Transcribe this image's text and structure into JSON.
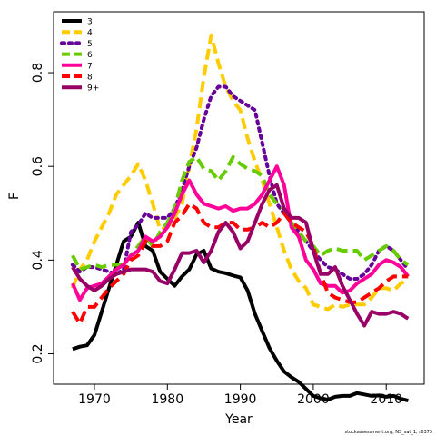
{
  "chart_data": {
    "type": "line",
    "title": "",
    "xlabel": "Year",
    "ylabel": "F",
    "xlim": [
      1964.4,
      2015.2
    ],
    "ylim": [
      0.135,
      0.93
    ],
    "xticks": [
      1970,
      1980,
      1990,
      2000,
      2010
    ],
    "yticks": [
      0.2,
      0.4,
      0.6,
      0.8
    ],
    "grid": false,
    "legend_position": "top-left",
    "credit": "stockassessment.org, NS_sat_1, r6373",
    "x": [
      1967,
      1968,
      1969,
      1970,
      1971,
      1972,
      1973,
      1974,
      1975,
      1976,
      1977,
      1978,
      1979,
      1980,
      1981,
      1982,
      1983,
      1984,
      1985,
      1986,
      1987,
      1988,
      1989,
      1990,
      1991,
      1992,
      1993,
      1994,
      1995,
      1996,
      1997,
      1998,
      1999,
      2000,
      2001,
      2002,
      2003,
      2004,
      2005,
      2006,
      2007,
      2008,
      2009,
      2010,
      2011,
      2012,
      2013
    ],
    "series": [
      {
        "name": "3",
        "color": "#000000",
        "dash": "solid",
        "values": [
          0.21,
          0.215,
          0.218,
          0.24,
          0.29,
          0.34,
          0.39,
          0.44,
          0.45,
          0.48,
          0.43,
          0.42,
          0.375,
          0.36,
          0.345,
          0.365,
          0.38,
          0.412,
          0.42,
          0.382,
          0.375,
          0.372,
          0.367,
          0.363,
          0.335,
          0.285,
          0.248,
          0.212,
          0.185,
          0.162,
          0.15,
          0.14,
          0.125,
          0.11,
          0.105,
          0.102,
          0.108,
          0.11,
          0.11,
          0.116,
          0.113,
          0.11,
          0.111,
          0.108,
          0.11,
          0.104,
          0.1
        ]
      },
      {
        "name": "4",
        "color": "#FFCC00",
        "dash": "dashed",
        "values": [
          0.34,
          0.38,
          0.4,
          0.44,
          0.47,
          0.5,
          0.54,
          0.56,
          0.58,
          0.605,
          0.57,
          0.52,
          0.465,
          0.47,
          0.49,
          0.52,
          0.6,
          0.68,
          0.79,
          0.88,
          0.82,
          0.77,
          0.74,
          0.72,
          0.66,
          0.61,
          0.57,
          0.52,
          0.47,
          0.42,
          0.38,
          0.355,
          0.34,
          0.305,
          0.3,
          0.295,
          0.305,
          0.3,
          0.305,
          0.305,
          0.305,
          0.32,
          0.34,
          0.34,
          0.335,
          0.35,
          0.36
        ]
      },
      {
        "name": "5",
        "color": "#660099",
        "dash": "dotted",
        "values": [
          0.39,
          0.375,
          0.385,
          0.385,
          0.38,
          0.375,
          0.37,
          0.38,
          0.46,
          0.475,
          0.5,
          0.49,
          0.49,
          0.49,
          0.51,
          0.55,
          0.6,
          0.64,
          0.7,
          0.75,
          0.77,
          0.77,
          0.75,
          0.74,
          0.73,
          0.72,
          0.65,
          0.58,
          0.52,
          0.5,
          0.48,
          0.46,
          0.44,
          0.42,
          0.4,
          0.385,
          0.38,
          0.37,
          0.36,
          0.36,
          0.37,
          0.39,
          0.42,
          0.43,
          0.42,
          0.4,
          0.38
        ]
      },
      {
        "name": "6",
        "color": "#66CC00",
        "dash": "dashed",
        "values": [
          0.41,
          0.38,
          0.385,
          0.39,
          0.385,
          0.39,
          0.39,
          0.39,
          0.41,
          0.43,
          0.45,
          0.43,
          0.46,
          0.48,
          0.51,
          0.57,
          0.61,
          0.62,
          0.595,
          0.59,
          0.57,
          0.59,
          0.62,
          0.605,
          0.595,
          0.59,
          0.58,
          0.54,
          0.52,
          0.51,
          0.48,
          0.46,
          0.44,
          0.43,
          0.41,
          0.42,
          0.425,
          0.42,
          0.42,
          0.42,
          0.4,
          0.41,
          0.42,
          0.43,
          0.42,
          0.4,
          0.39
        ]
      },
      {
        "name": "7",
        "color": "#FF0099",
        "dash": "solid",
        "values": [
          0.35,
          0.315,
          0.34,
          0.345,
          0.35,
          0.365,
          0.38,
          0.39,
          0.41,
          0.42,
          0.45,
          0.44,
          0.45,
          0.47,
          0.5,
          0.54,
          0.57,
          0.54,
          0.52,
          0.515,
          0.51,
          0.515,
          0.505,
          0.51,
          0.51,
          0.52,
          0.54,
          0.57,
          0.6,
          0.56,
          0.47,
          0.45,
          0.4,
          0.38,
          0.35,
          0.345,
          0.345,
          0.33,
          0.335,
          0.35,
          0.36,
          0.37,
          0.39,
          0.4,
          0.395,
          0.385,
          0.365
        ]
      },
      {
        "name": "8",
        "color": "#FF0000",
        "dash": "dashed",
        "values": [
          0.29,
          0.265,
          0.3,
          0.3,
          0.32,
          0.34,
          0.355,
          0.37,
          0.4,
          0.41,
          0.44,
          0.43,
          0.43,
          0.44,
          0.48,
          0.495,
          0.52,
          0.51,
          0.48,
          0.47,
          0.47,
          0.48,
          0.48,
          0.465,
          0.465,
          0.47,
          0.48,
          0.47,
          0.48,
          0.5,
          0.48,
          0.47,
          0.46,
          0.43,
          0.37,
          0.33,
          0.32,
          0.315,
          0.31,
          0.31,
          0.32,
          0.33,
          0.34,
          0.355,
          0.365,
          0.365,
          0.365
        ]
      },
      {
        "name": "9+",
        "color": "#990066",
        "dash": "solid",
        "values": [
          0.385,
          0.36,
          0.345,
          0.335,
          0.345,
          0.36,
          0.37,
          0.375,
          0.38,
          0.38,
          0.38,
          0.375,
          0.355,
          0.35,
          0.38,
          0.415,
          0.415,
          0.42,
          0.395,
          0.42,
          0.46,
          0.48,
          0.46,
          0.425,
          0.44,
          0.48,
          0.52,
          0.55,
          0.56,
          0.51,
          0.49,
          0.49,
          0.48,
          0.42,
          0.37,
          0.37,
          0.385,
          0.345,
          0.315,
          0.285,
          0.26,
          0.29,
          0.285,
          0.285,
          0.29,
          0.285,
          0.275
        ]
      }
    ]
  }
}
